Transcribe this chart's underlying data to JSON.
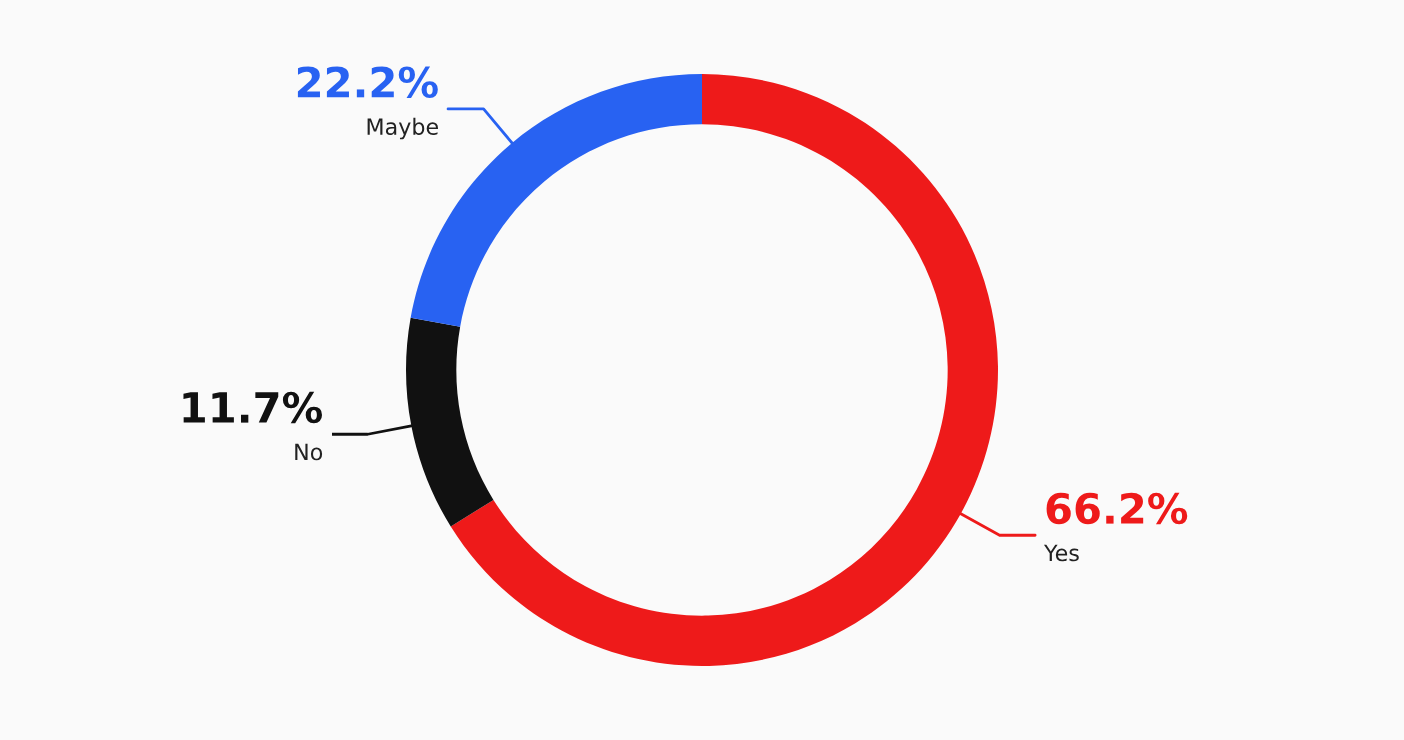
{
  "chart_data": {
    "type": "donut",
    "categories": [
      "Yes",
      "No",
      "Maybe"
    ],
    "values": [
      66.2,
      11.7,
      22.2
    ],
    "colors": [
      "#ee1a1a",
      "#111111",
      "#2862f2"
    ],
    "value_labels": [
      "66.2%",
      "11.7%",
      "22.2%"
    ]
  }
}
